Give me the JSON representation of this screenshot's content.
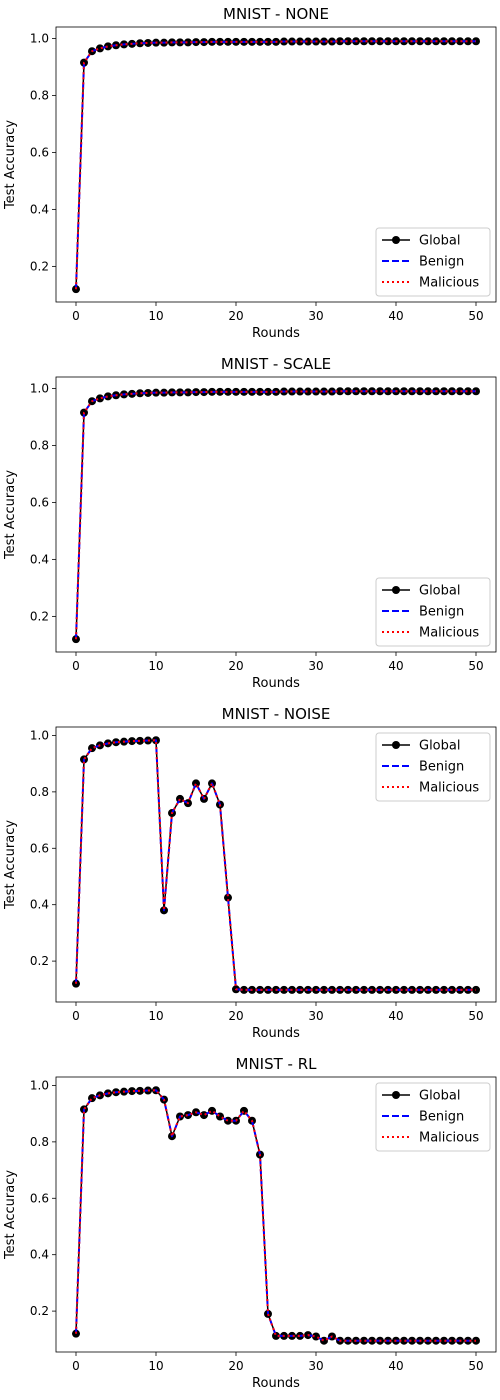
{
  "chart_data": [
    {
      "type": "line",
      "title": "MNIST - NONE",
      "xlabel": "Rounds",
      "ylabel": "Test Accuracy",
      "xlim": [
        -2.5,
        52.5
      ],
      "ylim": [
        0.075,
        1.04
      ],
      "xticks": [
        0,
        10,
        20,
        30,
        40,
        50
      ],
      "yticks": [
        0.2,
        0.4,
        0.6,
        0.8,
        1.0
      ],
      "ytick_labels": [
        "0.2",
        "0.4",
        "0.6",
        "0.8",
        "1.0"
      ],
      "legend_position": "lower-right",
      "x": [
        0,
        1,
        2,
        3,
        4,
        5,
        6,
        7,
        8,
        9,
        10,
        11,
        12,
        13,
        14,
        15,
        16,
        17,
        18,
        19,
        20,
        21,
        22,
        23,
        24,
        25,
        26,
        27,
        28,
        29,
        30,
        31,
        32,
        33,
        34,
        35,
        36,
        37,
        38,
        39,
        40,
        41,
        42,
        43,
        44,
        45,
        46,
        47,
        48,
        49,
        50
      ],
      "series": [
        {
          "name": "Global",
          "style": "solid-marker",
          "color": "#000000",
          "values": [
            0.12,
            0.915,
            0.955,
            0.965,
            0.972,
            0.976,
            0.979,
            0.981,
            0.983,
            0.984,
            0.985,
            0.985,
            0.986,
            0.986,
            0.986,
            0.987,
            0.987,
            0.988,
            0.988,
            0.988,
            0.988,
            0.988,
            0.988,
            0.988,
            0.988,
            0.988,
            0.989,
            0.989,
            0.989,
            0.989,
            0.989,
            0.989,
            0.989,
            0.99,
            0.99,
            0.99,
            0.99,
            0.99,
            0.99,
            0.99,
            0.99,
            0.99,
            0.99,
            0.99,
            0.99,
            0.99,
            0.99,
            0.99,
            0.99,
            0.99,
            0.99
          ]
        },
        {
          "name": "Benign",
          "style": "dashed",
          "color": "#0000ff",
          "values": [
            0.12,
            0.915,
            0.955,
            0.965,
            0.972,
            0.976,
            0.979,
            0.981,
            0.983,
            0.984,
            0.985,
            0.985,
            0.986,
            0.986,
            0.986,
            0.987,
            0.987,
            0.988,
            0.988,
            0.988,
            0.988,
            0.988,
            0.988,
            0.988,
            0.988,
            0.988,
            0.989,
            0.989,
            0.989,
            0.989,
            0.989,
            0.989,
            0.989,
            0.99,
            0.99,
            0.99,
            0.99,
            0.99,
            0.99,
            0.99,
            0.99,
            0.99,
            0.99,
            0.99,
            0.99,
            0.99,
            0.99,
            0.99,
            0.99,
            0.99,
            0.99
          ]
        },
        {
          "name": "Malicious",
          "style": "dotted",
          "color": "#ff0000",
          "values": [
            0.12,
            0.915,
            0.955,
            0.965,
            0.972,
            0.976,
            0.979,
            0.981,
            0.983,
            0.984,
            0.985,
            0.985,
            0.986,
            0.986,
            0.986,
            0.987,
            0.987,
            0.988,
            0.988,
            0.988,
            0.988,
            0.988,
            0.988,
            0.988,
            0.988,
            0.988,
            0.989,
            0.989,
            0.989,
            0.989,
            0.989,
            0.989,
            0.989,
            0.99,
            0.99,
            0.99,
            0.99,
            0.99,
            0.99,
            0.99,
            0.99,
            0.99,
            0.99,
            0.99,
            0.99,
            0.99,
            0.99,
            0.99,
            0.99,
            0.99,
            0.99
          ]
        }
      ]
    },
    {
      "type": "line",
      "title": "MNIST - SCALE",
      "xlabel": "Rounds",
      "ylabel": "Test Accuracy",
      "xlim": [
        -2.5,
        52.5
      ],
      "ylim": [
        0.075,
        1.04
      ],
      "xticks": [
        0,
        10,
        20,
        30,
        40,
        50
      ],
      "yticks": [
        0.2,
        0.4,
        0.6,
        0.8,
        1.0
      ],
      "ytick_labels": [
        "0.2",
        "0.4",
        "0.6",
        "0.8",
        "1.0"
      ],
      "legend_position": "lower-right",
      "x": [
        0,
        1,
        2,
        3,
        4,
        5,
        6,
        7,
        8,
        9,
        10,
        11,
        12,
        13,
        14,
        15,
        16,
        17,
        18,
        19,
        20,
        21,
        22,
        23,
        24,
        25,
        26,
        27,
        28,
        29,
        30,
        31,
        32,
        33,
        34,
        35,
        36,
        37,
        38,
        39,
        40,
        41,
        42,
        43,
        44,
        45,
        46,
        47,
        48,
        49,
        50
      ],
      "series": [
        {
          "name": "Global",
          "style": "solid-marker",
          "color": "#000000",
          "values": [
            0.12,
            0.915,
            0.955,
            0.965,
            0.972,
            0.976,
            0.979,
            0.981,
            0.983,
            0.984,
            0.985,
            0.985,
            0.986,
            0.986,
            0.986,
            0.987,
            0.987,
            0.988,
            0.988,
            0.988,
            0.988,
            0.988,
            0.988,
            0.988,
            0.988,
            0.988,
            0.989,
            0.989,
            0.989,
            0.989,
            0.989,
            0.989,
            0.989,
            0.99,
            0.99,
            0.99,
            0.99,
            0.99,
            0.99,
            0.99,
            0.99,
            0.99,
            0.99,
            0.99,
            0.99,
            0.99,
            0.99,
            0.99,
            0.99,
            0.99,
            0.99
          ]
        },
        {
          "name": "Benign",
          "style": "dashed",
          "color": "#0000ff",
          "values": [
            0.12,
            0.915,
            0.955,
            0.965,
            0.972,
            0.976,
            0.979,
            0.981,
            0.983,
            0.984,
            0.985,
            0.985,
            0.986,
            0.986,
            0.986,
            0.987,
            0.987,
            0.988,
            0.988,
            0.988,
            0.988,
            0.988,
            0.988,
            0.988,
            0.988,
            0.988,
            0.989,
            0.989,
            0.989,
            0.989,
            0.989,
            0.989,
            0.989,
            0.99,
            0.99,
            0.99,
            0.99,
            0.99,
            0.99,
            0.99,
            0.99,
            0.99,
            0.99,
            0.99,
            0.99,
            0.99,
            0.99,
            0.99,
            0.99,
            0.99,
            0.99
          ]
        },
        {
          "name": "Malicious",
          "style": "dotted",
          "color": "#ff0000",
          "values": [
            0.12,
            0.915,
            0.955,
            0.965,
            0.972,
            0.976,
            0.979,
            0.981,
            0.983,
            0.984,
            0.985,
            0.985,
            0.986,
            0.986,
            0.986,
            0.987,
            0.987,
            0.988,
            0.988,
            0.988,
            0.988,
            0.988,
            0.988,
            0.988,
            0.988,
            0.988,
            0.989,
            0.989,
            0.989,
            0.989,
            0.989,
            0.989,
            0.989,
            0.99,
            0.99,
            0.99,
            0.99,
            0.99,
            0.99,
            0.99,
            0.99,
            0.99,
            0.99,
            0.99,
            0.99,
            0.99,
            0.99,
            0.99,
            0.99,
            0.99,
            0.99
          ]
        }
      ]
    },
    {
      "type": "line",
      "title": "MNIST - NOISE",
      "xlabel": "Rounds",
      "ylabel": "Test Accuracy",
      "xlim": [
        -2.5,
        52.5
      ],
      "ylim": [
        0.055,
        1.03
      ],
      "xticks": [
        0,
        10,
        20,
        30,
        40,
        50
      ],
      "yticks": [
        0.2,
        0.4,
        0.6,
        0.8,
        1.0
      ],
      "ytick_labels": [
        "0.2",
        "0.4",
        "0.6",
        "0.8",
        "1.0"
      ],
      "legend_position": "upper-right",
      "x": [
        0,
        1,
        2,
        3,
        4,
        5,
        6,
        7,
        8,
        9,
        10,
        11,
        12,
        13,
        14,
        15,
        16,
        17,
        18,
        19,
        20,
        21,
        22,
        23,
        24,
        25,
        26,
        27,
        28,
        29,
        30,
        31,
        32,
        33,
        34,
        35,
        36,
        37,
        38,
        39,
        40,
        41,
        42,
        43,
        44,
        45,
        46,
        47,
        48,
        49,
        50
      ],
      "series": [
        {
          "name": "Global",
          "style": "solid-marker",
          "color": "#000000",
          "values": [
            0.12,
            0.915,
            0.955,
            0.965,
            0.972,
            0.976,
            0.978,
            0.98,
            0.981,
            0.982,
            0.983,
            0.38,
            0.725,
            0.775,
            0.76,
            0.83,
            0.775,
            0.83,
            0.755,
            0.425,
            0.1,
            0.098,
            0.098,
            0.098,
            0.098,
            0.098,
            0.098,
            0.098,
            0.098,
            0.098,
            0.098,
            0.098,
            0.098,
            0.098,
            0.098,
            0.098,
            0.098,
            0.098,
            0.098,
            0.098,
            0.098,
            0.098,
            0.098,
            0.098,
            0.098,
            0.098,
            0.098,
            0.098,
            0.098,
            0.098,
            0.098
          ]
        },
        {
          "name": "Benign",
          "style": "dashed",
          "color": "#0000ff",
          "values": [
            0.12,
            0.915,
            0.955,
            0.965,
            0.972,
            0.976,
            0.978,
            0.98,
            0.981,
            0.982,
            0.983,
            0.38,
            0.725,
            0.775,
            0.76,
            0.83,
            0.775,
            0.83,
            0.755,
            0.425,
            0.1,
            0.098,
            0.098,
            0.098,
            0.098,
            0.098,
            0.098,
            0.098,
            0.098,
            0.098,
            0.098,
            0.098,
            0.098,
            0.098,
            0.098,
            0.098,
            0.098,
            0.098,
            0.098,
            0.098,
            0.098,
            0.098,
            0.098,
            0.098,
            0.098,
            0.098,
            0.098,
            0.098,
            0.098,
            0.098,
            0.098
          ]
        },
        {
          "name": "Malicious",
          "style": "dotted",
          "color": "#ff0000",
          "values": [
            0.12,
            0.915,
            0.955,
            0.965,
            0.972,
            0.976,
            0.978,
            0.98,
            0.981,
            0.982,
            0.983,
            0.38,
            0.725,
            0.775,
            0.76,
            0.83,
            0.775,
            0.83,
            0.755,
            0.425,
            0.1,
            0.098,
            0.098,
            0.098,
            0.098,
            0.098,
            0.098,
            0.098,
            0.098,
            0.098,
            0.098,
            0.098,
            0.098,
            0.098,
            0.098,
            0.098,
            0.098,
            0.098,
            0.098,
            0.098,
            0.098,
            0.098,
            0.098,
            0.098,
            0.098,
            0.098,
            0.098,
            0.098,
            0.098,
            0.098,
            0.098
          ]
        }
      ]
    },
    {
      "type": "line",
      "title": "MNIST - RL",
      "xlabel": "Rounds",
      "ylabel": "Test Accuracy",
      "xlim": [
        -2.5,
        52.5
      ],
      "ylim": [
        0.055,
        1.03
      ],
      "xticks": [
        0,
        10,
        20,
        30,
        40,
        50
      ],
      "yticks": [
        0.2,
        0.4,
        0.6,
        0.8,
        1.0
      ],
      "ytick_labels": [
        "0.2",
        "0.4",
        "0.6",
        "0.8",
        "1.0"
      ],
      "legend_position": "upper-right",
      "x": [
        0,
        1,
        2,
        3,
        4,
        5,
        6,
        7,
        8,
        9,
        10,
        11,
        12,
        13,
        14,
        15,
        16,
        17,
        18,
        19,
        20,
        21,
        22,
        23,
        24,
        25,
        26,
        27,
        28,
        29,
        30,
        31,
        32,
        33,
        34,
        35,
        36,
        37,
        38,
        39,
        40,
        41,
        42,
        43,
        44,
        45,
        46,
        47,
        48,
        49,
        50
      ],
      "series": [
        {
          "name": "Global",
          "style": "solid-marker",
          "color": "#000000",
          "values": [
            0.12,
            0.915,
            0.955,
            0.965,
            0.972,
            0.976,
            0.978,
            0.98,
            0.981,
            0.982,
            0.983,
            0.95,
            0.82,
            0.89,
            0.895,
            0.905,
            0.895,
            0.91,
            0.89,
            0.875,
            0.875,
            0.91,
            0.875,
            0.755,
            0.19,
            0.112,
            0.112,
            0.112,
            0.112,
            0.115,
            0.11,
            0.095,
            0.11,
            0.095,
            0.095,
            0.095,
            0.095,
            0.095,
            0.095,
            0.095,
            0.095,
            0.095,
            0.095,
            0.095,
            0.095,
            0.095,
            0.095,
            0.095,
            0.095,
            0.095,
            0.095
          ]
        },
        {
          "name": "Benign",
          "style": "dashed",
          "color": "#0000ff",
          "values": [
            0.12,
            0.915,
            0.955,
            0.965,
            0.972,
            0.976,
            0.978,
            0.98,
            0.981,
            0.982,
            0.983,
            0.95,
            0.82,
            0.89,
            0.895,
            0.905,
            0.895,
            0.91,
            0.89,
            0.875,
            0.875,
            0.91,
            0.875,
            0.755,
            0.19,
            0.112,
            0.112,
            0.112,
            0.112,
            0.115,
            0.11,
            0.095,
            0.11,
            0.095,
            0.095,
            0.095,
            0.095,
            0.095,
            0.095,
            0.095,
            0.095,
            0.095,
            0.095,
            0.095,
            0.095,
            0.095,
            0.095,
            0.095,
            0.095,
            0.095,
            0.095
          ]
        },
        {
          "name": "Malicious",
          "style": "dotted",
          "color": "#ff0000",
          "values": [
            0.12,
            0.915,
            0.955,
            0.965,
            0.972,
            0.976,
            0.978,
            0.98,
            0.981,
            0.982,
            0.983,
            0.95,
            0.82,
            0.89,
            0.895,
            0.905,
            0.895,
            0.91,
            0.89,
            0.875,
            0.875,
            0.91,
            0.875,
            0.755,
            0.19,
            0.112,
            0.112,
            0.112,
            0.112,
            0.115,
            0.11,
            0.095,
            0.11,
            0.095,
            0.095,
            0.095,
            0.095,
            0.095,
            0.095,
            0.095,
            0.095,
            0.095,
            0.095,
            0.095,
            0.095,
            0.095,
            0.095,
            0.095,
            0.095,
            0.095,
            0.095
          ]
        }
      ]
    }
  ]
}
